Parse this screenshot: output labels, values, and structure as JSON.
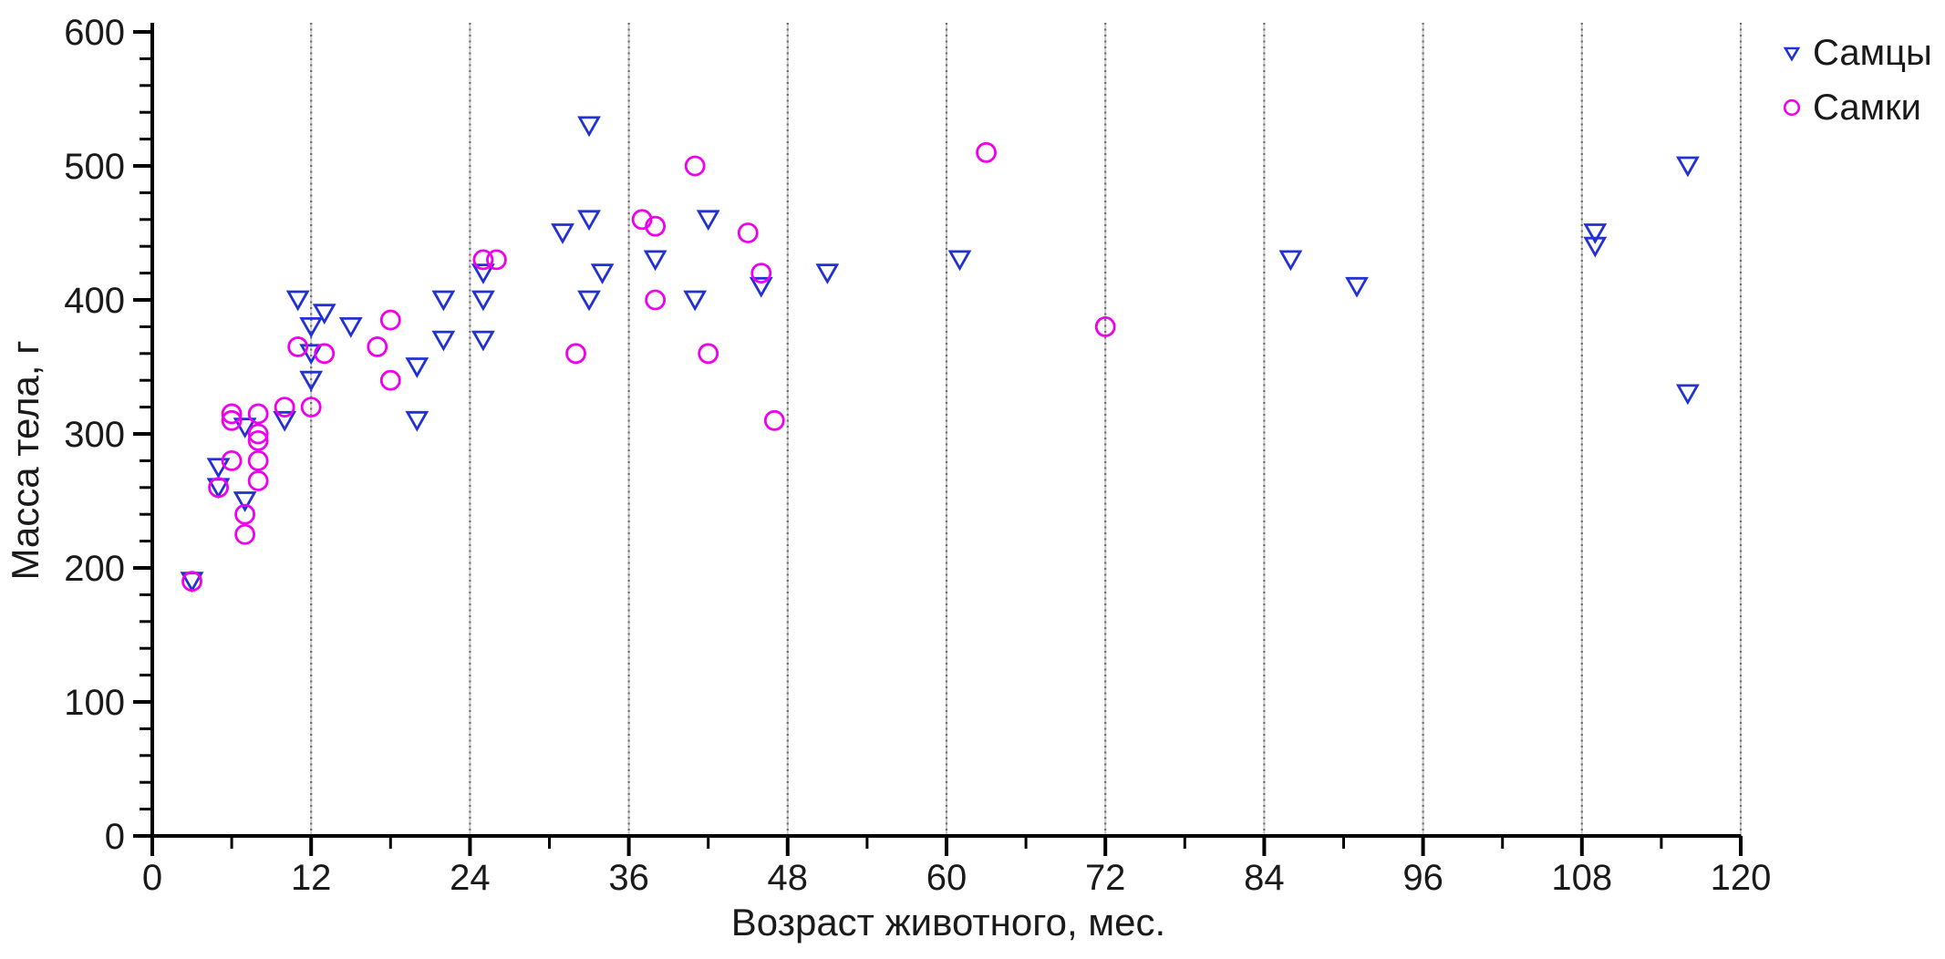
{
  "chart_data": {
    "type": "scatter",
    "title": "",
    "xlabel": "Возраст животного, мес.",
    "ylabel": "Масса тела, г",
    "xlim": [
      0,
      120
    ],
    "ylim": [
      0,
      600
    ],
    "x_major_tick_step": 12,
    "x_minor_tick_step": 6,
    "y_major_tick_step": 100,
    "y_minor_tick_step": 20,
    "x_tick_labels": [
      "0",
      "12",
      "24",
      "36",
      "48",
      "60",
      "72",
      "84",
      "96",
      "108",
      "120"
    ],
    "y_tick_labels": [
      "0",
      "100",
      "200",
      "300",
      "400",
      "500",
      "600"
    ],
    "grid": "vertical-dotted-at-x-major",
    "legend_position": "top-right-outside",
    "axis_color": "#000000",
    "text_color": "#1a1a1a",
    "grid_dot_color": "#6e6e6e",
    "grid_base_color": "#c9c9c9",
    "series": [
      {
        "name": "Самцы",
        "marker": "triangle-down",
        "color": "#2231d3",
        "points": [
          [
            3,
            190
          ],
          [
            5,
            275
          ],
          [
            5,
            260
          ],
          [
            7,
            305
          ],
          [
            7,
            250
          ],
          [
            10,
            310
          ],
          [
            11,
            400
          ],
          [
            12,
            380
          ],
          [
            12,
            360
          ],
          [
            12,
            340
          ],
          [
            13,
            390
          ],
          [
            15,
            380
          ],
          [
            20,
            350
          ],
          [
            20,
            310
          ],
          [
            22,
            400
          ],
          [
            22,
            370
          ],
          [
            25,
            420
          ],
          [
            25,
            400
          ],
          [
            25,
            370
          ],
          [
            31,
            450
          ],
          [
            33,
            530
          ],
          [
            33,
            460
          ],
          [
            33,
            400
          ],
          [
            34,
            420
          ],
          [
            38,
            430
          ],
          [
            41,
            400
          ],
          [
            42,
            460
          ],
          [
            46,
            410
          ],
          [
            51,
            420
          ],
          [
            61,
            430
          ],
          [
            86,
            430
          ],
          [
            91,
            410
          ],
          [
            109,
            450
          ],
          [
            109,
            440
          ],
          [
            116,
            500
          ],
          [
            116,
            330
          ]
        ]
      },
      {
        "name": "Самки",
        "marker": "circle",
        "color": "#ee00ee",
        "points": [
          [
            3,
            190
          ],
          [
            5,
            260
          ],
          [
            6,
            315
          ],
          [
            6,
            310
          ],
          [
            6,
            280
          ],
          [
            7,
            240
          ],
          [
            7,
            225
          ],
          [
            8,
            315
          ],
          [
            8,
            300
          ],
          [
            8,
            295
          ],
          [
            8,
            280
          ],
          [
            8,
            265
          ],
          [
            10,
            320
          ],
          [
            11,
            365
          ],
          [
            12,
            320
          ],
          [
            13,
            360
          ],
          [
            17,
            365
          ],
          [
            18,
            385
          ],
          [
            18,
            340
          ],
          [
            25,
            430
          ],
          [
            26,
            430
          ],
          [
            32,
            360
          ],
          [
            37,
            460
          ],
          [
            38,
            455
          ],
          [
            38,
            400
          ],
          [
            41,
            500
          ],
          [
            42,
            360
          ],
          [
            45,
            450
          ],
          [
            46,
            420
          ],
          [
            47,
            310
          ],
          [
            63,
            510
          ],
          [
            72,
            380
          ]
        ]
      }
    ]
  }
}
